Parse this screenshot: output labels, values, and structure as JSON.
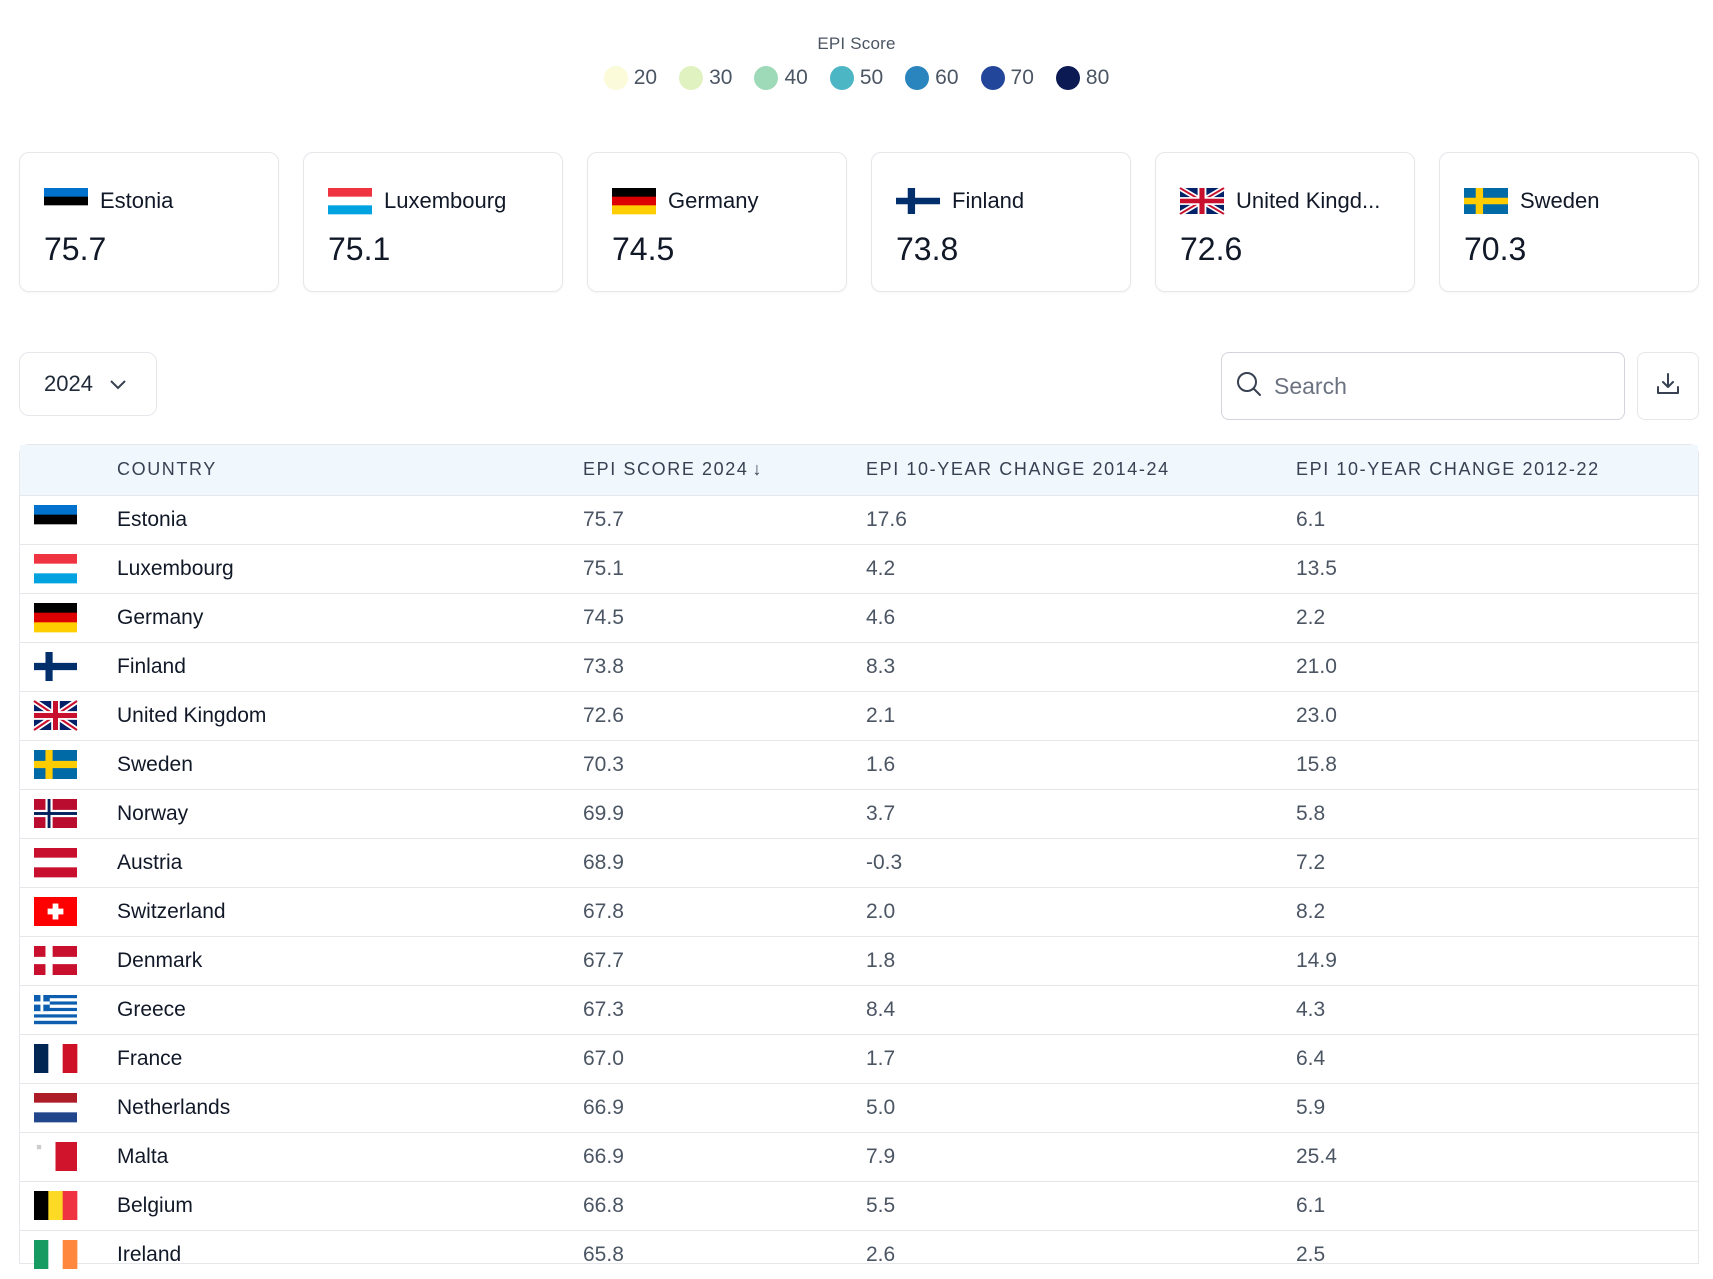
{
  "legend": {
    "title": "EPI Score",
    "items": [
      {
        "label": "20",
        "color": "#fbfbd9"
      },
      {
        "label": "30",
        "color": "#dff2c0"
      },
      {
        "label": "40",
        "color": "#9ed9b8"
      },
      {
        "label": "50",
        "color": "#4db6c5"
      },
      {
        "label": "60",
        "color": "#2a84bd"
      },
      {
        "label": "70",
        "color": "#22469a"
      },
      {
        "label": "80",
        "color": "#0b1a53"
      }
    ]
  },
  "cards": [
    {
      "name": "Estonia",
      "score": "75.7",
      "flag": "estonia-flag"
    },
    {
      "name": "Luxembourg",
      "score": "75.1",
      "flag": "luxembourg-flag"
    },
    {
      "name": "Germany",
      "score": "74.5",
      "flag": "germany-flag"
    },
    {
      "name": "Finland",
      "score": "73.8",
      "flag": "finland-flag"
    },
    {
      "name": "United Kingd...",
      "score": "72.6",
      "flag": "united-kingdom-flag"
    },
    {
      "name": "Sweden",
      "score": "70.3",
      "flag": "sweden-flag"
    }
  ],
  "controls": {
    "year": "2024",
    "search_placeholder": "Search",
    "download_icon": "download-icon",
    "search_icon": "search-icon",
    "chevron_icon": "chevron-down-icon"
  },
  "table": {
    "headers": {
      "country": "COUNTRY",
      "score": "EPI SCORE 2024",
      "sort_arrow": "↓",
      "change1": "EPI 10-YEAR CHANGE 2014-24",
      "change2": "EPI 10-YEAR CHANGE 2012-22"
    },
    "rows": [
      {
        "country": "Estonia",
        "score": "75.7",
        "change1": "17.6",
        "change2": "6.1",
        "flag": "estonia"
      },
      {
        "country": "Luxembourg",
        "score": "75.1",
        "change1": "4.2",
        "change2": "13.5",
        "flag": "luxembourg"
      },
      {
        "country": "Germany",
        "score": "74.5",
        "change1": "4.6",
        "change2": "2.2",
        "flag": "germany"
      },
      {
        "country": "Finland",
        "score": "73.8",
        "change1": "8.3",
        "change2": "21.0",
        "flag": "finland"
      },
      {
        "country": "United Kingdom",
        "score": "72.6",
        "change1": "2.1",
        "change2": "23.0",
        "flag": "uk"
      },
      {
        "country": "Sweden",
        "score": "70.3",
        "change1": "1.6",
        "change2": "15.8",
        "flag": "sweden"
      },
      {
        "country": "Norway",
        "score": "69.9",
        "change1": "3.7",
        "change2": "5.8",
        "flag": "norway"
      },
      {
        "country": "Austria",
        "score": "68.9",
        "change1": "-0.3",
        "change2": "7.2",
        "flag": "austria"
      },
      {
        "country": "Switzerland",
        "score": "67.8",
        "change1": "2.0",
        "change2": "8.2",
        "flag": "switzerland"
      },
      {
        "country": "Denmark",
        "score": "67.7",
        "change1": "1.8",
        "change2": "14.9",
        "flag": "denmark"
      },
      {
        "country": "Greece",
        "score": "67.3",
        "change1": "8.4",
        "change2": "4.3",
        "flag": "greece"
      },
      {
        "country": "France",
        "score": "67.0",
        "change1": "1.7",
        "change2": "6.4",
        "flag": "france"
      },
      {
        "country": "Netherlands",
        "score": "66.9",
        "change1": "5.0",
        "change2": "5.9",
        "flag": "netherlands"
      },
      {
        "country": "Malta",
        "score": "66.9",
        "change1": "7.9",
        "change2": "25.4",
        "flag": "malta"
      },
      {
        "country": "Belgium",
        "score": "66.8",
        "change1": "5.5",
        "change2": "6.1",
        "flag": "belgium"
      },
      {
        "country": "Ireland",
        "score": "65.8",
        "change1": "2.6",
        "change2": "2.5",
        "flag": "ireland"
      }
    ]
  }
}
